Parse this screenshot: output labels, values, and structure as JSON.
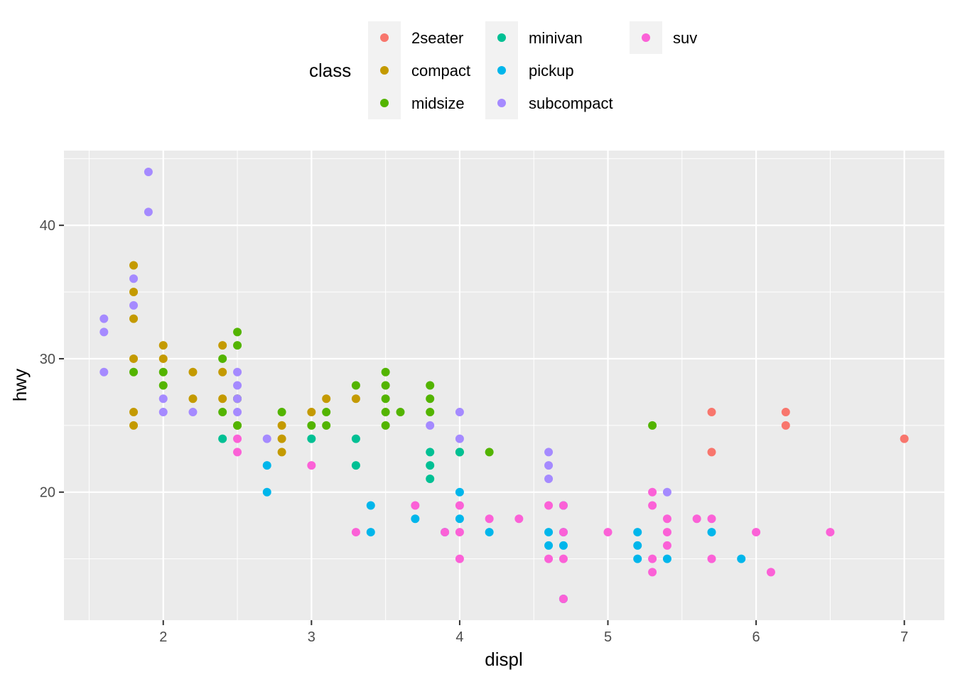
{
  "chart_data": {
    "type": "scatter",
    "xlabel": "displ",
    "ylabel": "hwy",
    "xlim": [
      1.33,
      7.27
    ],
    "ylim": [
      10.4,
      45.6
    ],
    "x_ticks": [
      2,
      3,
      4,
      5,
      6,
      7
    ],
    "y_ticks": [
      20,
      30,
      40
    ],
    "grid": true,
    "legend": {
      "title": "class",
      "position": "top",
      "entries": [
        {
          "name": "2seater",
          "color": "#F8766D"
        },
        {
          "name": "compact",
          "color": "#C49A00"
        },
        {
          "name": "midsize",
          "color": "#53B400"
        },
        {
          "name": "minivan",
          "color": "#00C094"
        },
        {
          "name": "pickup",
          "color": "#00B6EB"
        },
        {
          "name": "subcompact",
          "color": "#A58AFF"
        },
        {
          "name": "suv",
          "color": "#FB61D7"
        }
      ]
    },
    "series": [
      {
        "name": "2seater",
        "points": [
          [
            5.7,
            26
          ],
          [
            5.7,
            23
          ],
          [
            6.2,
            26
          ],
          [
            6.2,
            25
          ],
          [
            7.0,
            24
          ]
        ]
      },
      {
        "name": "compact",
        "points": [
          [
            1.8,
            37
          ],
          [
            1.8,
            35
          ],
          [
            1.8,
            33
          ],
          [
            1.8,
            30
          ],
          [
            1.8,
            26
          ],
          [
            1.8,
            25
          ],
          [
            2.0,
            31
          ],
          [
            2.0,
            30
          ],
          [
            2.2,
            29
          ],
          [
            2.2,
            27
          ],
          [
            2.4,
            31
          ],
          [
            2.4,
            29
          ],
          [
            2.4,
            27
          ],
          [
            2.5,
            27
          ],
          [
            2.5,
            25
          ],
          [
            2.8,
            25
          ],
          [
            2.8,
            24
          ],
          [
            2.8,
            23
          ],
          [
            3.0,
            26
          ],
          [
            3.1,
            27
          ],
          [
            3.3,
            27
          ]
        ]
      },
      {
        "name": "midsize",
        "points": [
          [
            1.8,
            29
          ],
          [
            2.0,
            29
          ],
          [
            2.0,
            28
          ],
          [
            2.4,
            30
          ],
          [
            2.4,
            26
          ],
          [
            2.5,
            32
          ],
          [
            2.5,
            31
          ],
          [
            2.5,
            27
          ],
          [
            2.5,
            25
          ],
          [
            2.8,
            26
          ],
          [
            3.0,
            25
          ],
          [
            3.1,
            26
          ],
          [
            3.1,
            25
          ],
          [
            3.3,
            28
          ],
          [
            3.5,
            29
          ],
          [
            3.5,
            28
          ],
          [
            3.5,
            27
          ],
          [
            3.5,
            26
          ],
          [
            3.5,
            25
          ],
          [
            3.6,
            26
          ],
          [
            3.8,
            28
          ],
          [
            3.8,
            27
          ],
          [
            3.8,
            26
          ],
          [
            4.0,
            23
          ],
          [
            4.2,
            23
          ],
          [
            5.3,
            25
          ]
        ]
      },
      {
        "name": "minivan",
        "points": [
          [
            2.4,
            24
          ],
          [
            3.0,
            24
          ],
          [
            3.3,
            24
          ],
          [
            3.3,
            22
          ],
          [
            3.8,
            23
          ],
          [
            3.8,
            22
          ],
          [
            3.8,
            21
          ],
          [
            4.0,
            23
          ]
        ]
      },
      {
        "name": "pickup",
        "points": [
          [
            2.7,
            22
          ],
          [
            2.7,
            20
          ],
          [
            3.4,
            19
          ],
          [
            3.4,
            17
          ],
          [
            3.7,
            18
          ],
          [
            3.9,
            17
          ],
          [
            4.0,
            20
          ],
          [
            4.0,
            18
          ],
          [
            4.2,
            17
          ],
          [
            4.6,
            17
          ],
          [
            4.6,
            16
          ],
          [
            4.7,
            19
          ],
          [
            4.7,
            17
          ],
          [
            4.7,
            16
          ],
          [
            4.7,
            12
          ],
          [
            5.2,
            17
          ],
          [
            5.2,
            16
          ],
          [
            5.2,
            15
          ],
          [
            5.4,
            15
          ],
          [
            5.7,
            17
          ],
          [
            5.9,
            15
          ]
        ]
      },
      {
        "name": "subcompact",
        "points": [
          [
            1.6,
            33
          ],
          [
            1.6,
            32
          ],
          [
            1.6,
            29
          ],
          [
            1.8,
            36
          ],
          [
            1.8,
            34
          ],
          [
            1.9,
            44
          ],
          [
            1.9,
            41
          ],
          [
            2.0,
            27
          ],
          [
            2.0,
            26
          ],
          [
            2.2,
            26
          ],
          [
            2.5,
            29
          ],
          [
            2.5,
            28
          ],
          [
            2.5,
            27
          ],
          [
            2.5,
            26
          ],
          [
            2.7,
            24
          ],
          [
            3.8,
            25
          ],
          [
            4.0,
            26
          ],
          [
            4.0,
            24
          ],
          [
            4.6,
            23
          ],
          [
            4.6,
            22
          ],
          [
            4.6,
            21
          ],
          [
            5.4,
            20
          ]
        ]
      },
      {
        "name": "suv",
        "points": [
          [
            2.5,
            24
          ],
          [
            2.5,
            23
          ],
          [
            3.0,
            22
          ],
          [
            3.3,
            17
          ],
          [
            3.7,
            19
          ],
          [
            3.9,
            17
          ],
          [
            4.0,
            19
          ],
          [
            4.0,
            17
          ],
          [
            4.0,
            15
          ],
          [
            4.2,
            18
          ],
          [
            4.4,
            18
          ],
          [
            4.6,
            19
          ],
          [
            4.6,
            15
          ],
          [
            4.7,
            19
          ],
          [
            4.7,
            17
          ],
          [
            4.7,
            15
          ],
          [
            4.7,
            12
          ],
          [
            5.0,
            17
          ],
          [
            5.3,
            20
          ],
          [
            5.3,
            19
          ],
          [
            5.3,
            15
          ],
          [
            5.3,
            14
          ],
          [
            5.4,
            18
          ],
          [
            5.4,
            17
          ],
          [
            5.4,
            16
          ],
          [
            5.6,
            18
          ],
          [
            5.7,
            18
          ],
          [
            5.7,
            15
          ],
          [
            6.0,
            17
          ],
          [
            6.1,
            14
          ],
          [
            6.5,
            17
          ]
        ]
      }
    ]
  }
}
